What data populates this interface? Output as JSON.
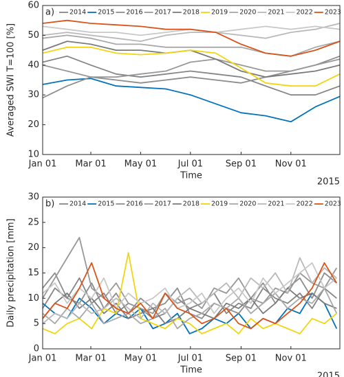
{
  "chart_data": [
    {
      "type": "line",
      "panel_label": "a)",
      "ylabel": "Averaged SWI T=100 [%]",
      "xlabel": "Time",
      "year_label": "2015",
      "x": [
        1,
        31,
        60,
        91,
        121,
        152,
        182,
        213,
        244,
        274,
        305,
        335,
        365
      ],
      "xlim": [
        1,
        365
      ],
      "xticks": [
        {
          "value": 1,
          "label": "Jan 01"
        },
        {
          "value": 60,
          "label": "Mar 01"
        },
        {
          "value": 121,
          "label": "May 01"
        },
        {
          "value": 182,
          "label": "Jul 01"
        },
        {
          "value": 244,
          "label": "Sep 01"
        },
        {
          "value": 305,
          "label": "Nov 01"
        }
      ],
      "ylim": [
        10,
        60
      ],
      "yticks": [
        10,
        20,
        30,
        40,
        50,
        60
      ],
      "series": [
        {
          "name": "2014",
          "color": "#858585",
          "values": [
            41,
            43,
            40,
            37,
            36,
            37,
            38,
            37,
            36,
            33,
            30,
            30,
            33
          ]
        },
        {
          "name": "2015",
          "color": "#0072bd",
          "values": [
            33.5,
            35,
            35.5,
            33,
            32.5,
            32,
            30,
            27,
            24,
            23,
            21,
            26,
            29.5
          ]
        },
        {
          "name": "2016",
          "color": "#8c8c8c",
          "values": [
            29,
            33,
            36,
            35,
            34,
            35,
            36,
            35,
            34,
            36,
            38,
            40,
            43
          ]
        },
        {
          "name": "2017",
          "color": "#979797",
          "values": [
            40,
            38,
            36,
            36,
            37,
            38,
            41,
            42,
            40,
            38,
            38,
            40,
            42
          ]
        },
        {
          "name": "2018",
          "color": "#7a7a7a",
          "values": [
            45,
            48,
            47,
            45,
            45,
            44,
            45,
            42,
            38,
            36,
            37,
            38,
            40
          ]
        },
        {
          "name": "2019",
          "color": "#f2d50f",
          "values": [
            44,
            46,
            46,
            44,
            43.5,
            44,
            45,
            44,
            39,
            34,
            33,
            33,
            37
          ]
        },
        {
          "name": "2020",
          "color": "#a8a8a8",
          "values": [
            49,
            50,
            49,
            47,
            47,
            46,
            46,
            46,
            46,
            44,
            43,
            46,
            48
          ]
        },
        {
          "name": "2021",
          "color": "#b8b8b8",
          "values": [
            50,
            51,
            50,
            49,
            48,
            50,
            51,
            51,
            50,
            49,
            51,
            52,
            54
          ]
        },
        {
          "name": "2022",
          "color": "#c8c8c8",
          "values": [
            53,
            52,
            51,
            51,
            50,
            51,
            52,
            51,
            52,
            53,
            52,
            53,
            52
          ]
        },
        {
          "name": "2023",
          "color": "#d95319",
          "values": [
            54,
            55,
            54,
            53.5,
            53,
            52,
            52,
            51,
            47,
            44,
            43,
            45,
            48
          ]
        }
      ]
    },
    {
      "type": "line",
      "panel_label": "b)",
      "ylabel": "Daily precipitation [mm]",
      "xlabel": "Time",
      "year_label": "2015",
      "x": [
        1,
        16,
        31,
        46,
        61,
        76,
        91,
        106,
        121,
        136,
        151,
        166,
        181,
        196,
        211,
        226,
        241,
        256,
        271,
        286,
        301,
        316,
        331,
        346,
        361
      ],
      "xlim": [
        1,
        365
      ],
      "xticks": [
        {
          "value": 1,
          "label": "Jan 01"
        },
        {
          "value": 60,
          "label": "Mar 01"
        },
        {
          "value": 121,
          "label": "May 01"
        },
        {
          "value": 182,
          "label": "Jul 01"
        },
        {
          "value": 244,
          "label": "Sep 01"
        },
        {
          "value": 305,
          "label": "Nov 01"
        }
      ],
      "ylim": [
        0,
        30
      ],
      "yticks": [
        0,
        5,
        10,
        15,
        20,
        25,
        30
      ],
      "series": [
        {
          "name": "2014",
          "color": "#858585",
          "values": [
            8,
            12,
            10,
            14,
            9,
            11,
            7,
            9,
            8,
            6,
            7,
            10,
            8,
            9,
            11,
            7,
            9,
            8,
            12,
            10,
            9,
            11,
            8,
            12,
            10
          ]
        },
        {
          "name": "2015",
          "color": "#0072bd",
          "values": [
            9,
            7,
            6,
            10,
            8,
            5,
            7,
            6,
            8,
            4,
            5,
            7,
            3,
            4,
            6,
            5,
            7,
            4,
            6,
            5,
            8,
            7,
            11,
            9,
            4
          ]
        },
        {
          "name": "2016",
          "color": "#8c8c8c",
          "values": [
            12,
            15,
            10,
            9,
            13,
            8,
            11,
            7,
            10,
            8,
            9,
            12,
            7,
            6,
            9,
            8,
            7,
            10,
            13,
            9,
            12,
            14,
            10,
            15,
            13
          ]
        },
        {
          "name": "2017",
          "color": "#979797",
          "values": [
            10,
            14,
            18,
            22,
            12,
            10,
            13,
            9,
            8,
            7,
            11,
            9,
            10,
            8,
            12,
            11,
            14,
            10,
            9,
            12,
            11,
            15,
            13,
            12,
            16
          ]
        },
        {
          "name": "2018",
          "color": "#7a7a7a",
          "values": [
            6,
            9,
            11,
            8,
            10,
            7,
            9,
            6,
            7,
            8,
            5,
            6,
            8,
            7,
            6,
            9,
            8,
            10,
            7,
            9,
            12,
            10,
            11,
            9,
            8
          ]
        },
        {
          "name": "2019",
          "color": "#f2d50f",
          "values": [
            4,
            3,
            5,
            6,
            4,
            8,
            7,
            19,
            6,
            5,
            4,
            6,
            5,
            3,
            4,
            5,
            3,
            6,
            4,
            5,
            4,
            3,
            6,
            5,
            7
          ]
        },
        {
          "name": "2020",
          "color": "#a8a8a8",
          "values": [
            7,
            5,
            8,
            6,
            9,
            5,
            6,
            7,
            5,
            6,
            8,
            4,
            6,
            7,
            9,
            8,
            10,
            7,
            9,
            11,
            8,
            10,
            9,
            12,
            7
          ]
        },
        {
          "name": "2021",
          "color": "#b8b8b8",
          "values": [
            5,
            7,
            6,
            9,
            7,
            8,
            10,
            8,
            6,
            9,
            7,
            10,
            12,
            9,
            11,
            13,
            10,
            14,
            12,
            15,
            11,
            18,
            13,
            16,
            14
          ]
        },
        {
          "name": "2022",
          "color": "#c8c8c8",
          "values": [
            11,
            13,
            9,
            12,
            10,
            14,
            8,
            11,
            9,
            10,
            12,
            8,
            9,
            11,
            7,
            10,
            12,
            9,
            14,
            11,
            13,
            15,
            17,
            12,
            14
          ]
        },
        {
          "name": "2023",
          "color": "#d95319",
          "values": [
            6,
            9,
            8,
            12,
            17,
            10,
            8,
            7,
            9,
            6,
            11,
            8,
            7,
            5,
            6,
            8,
            5,
            4,
            6,
            5,
            7,
            9,
            12,
            17,
            13
          ]
        }
      ]
    }
  ]
}
